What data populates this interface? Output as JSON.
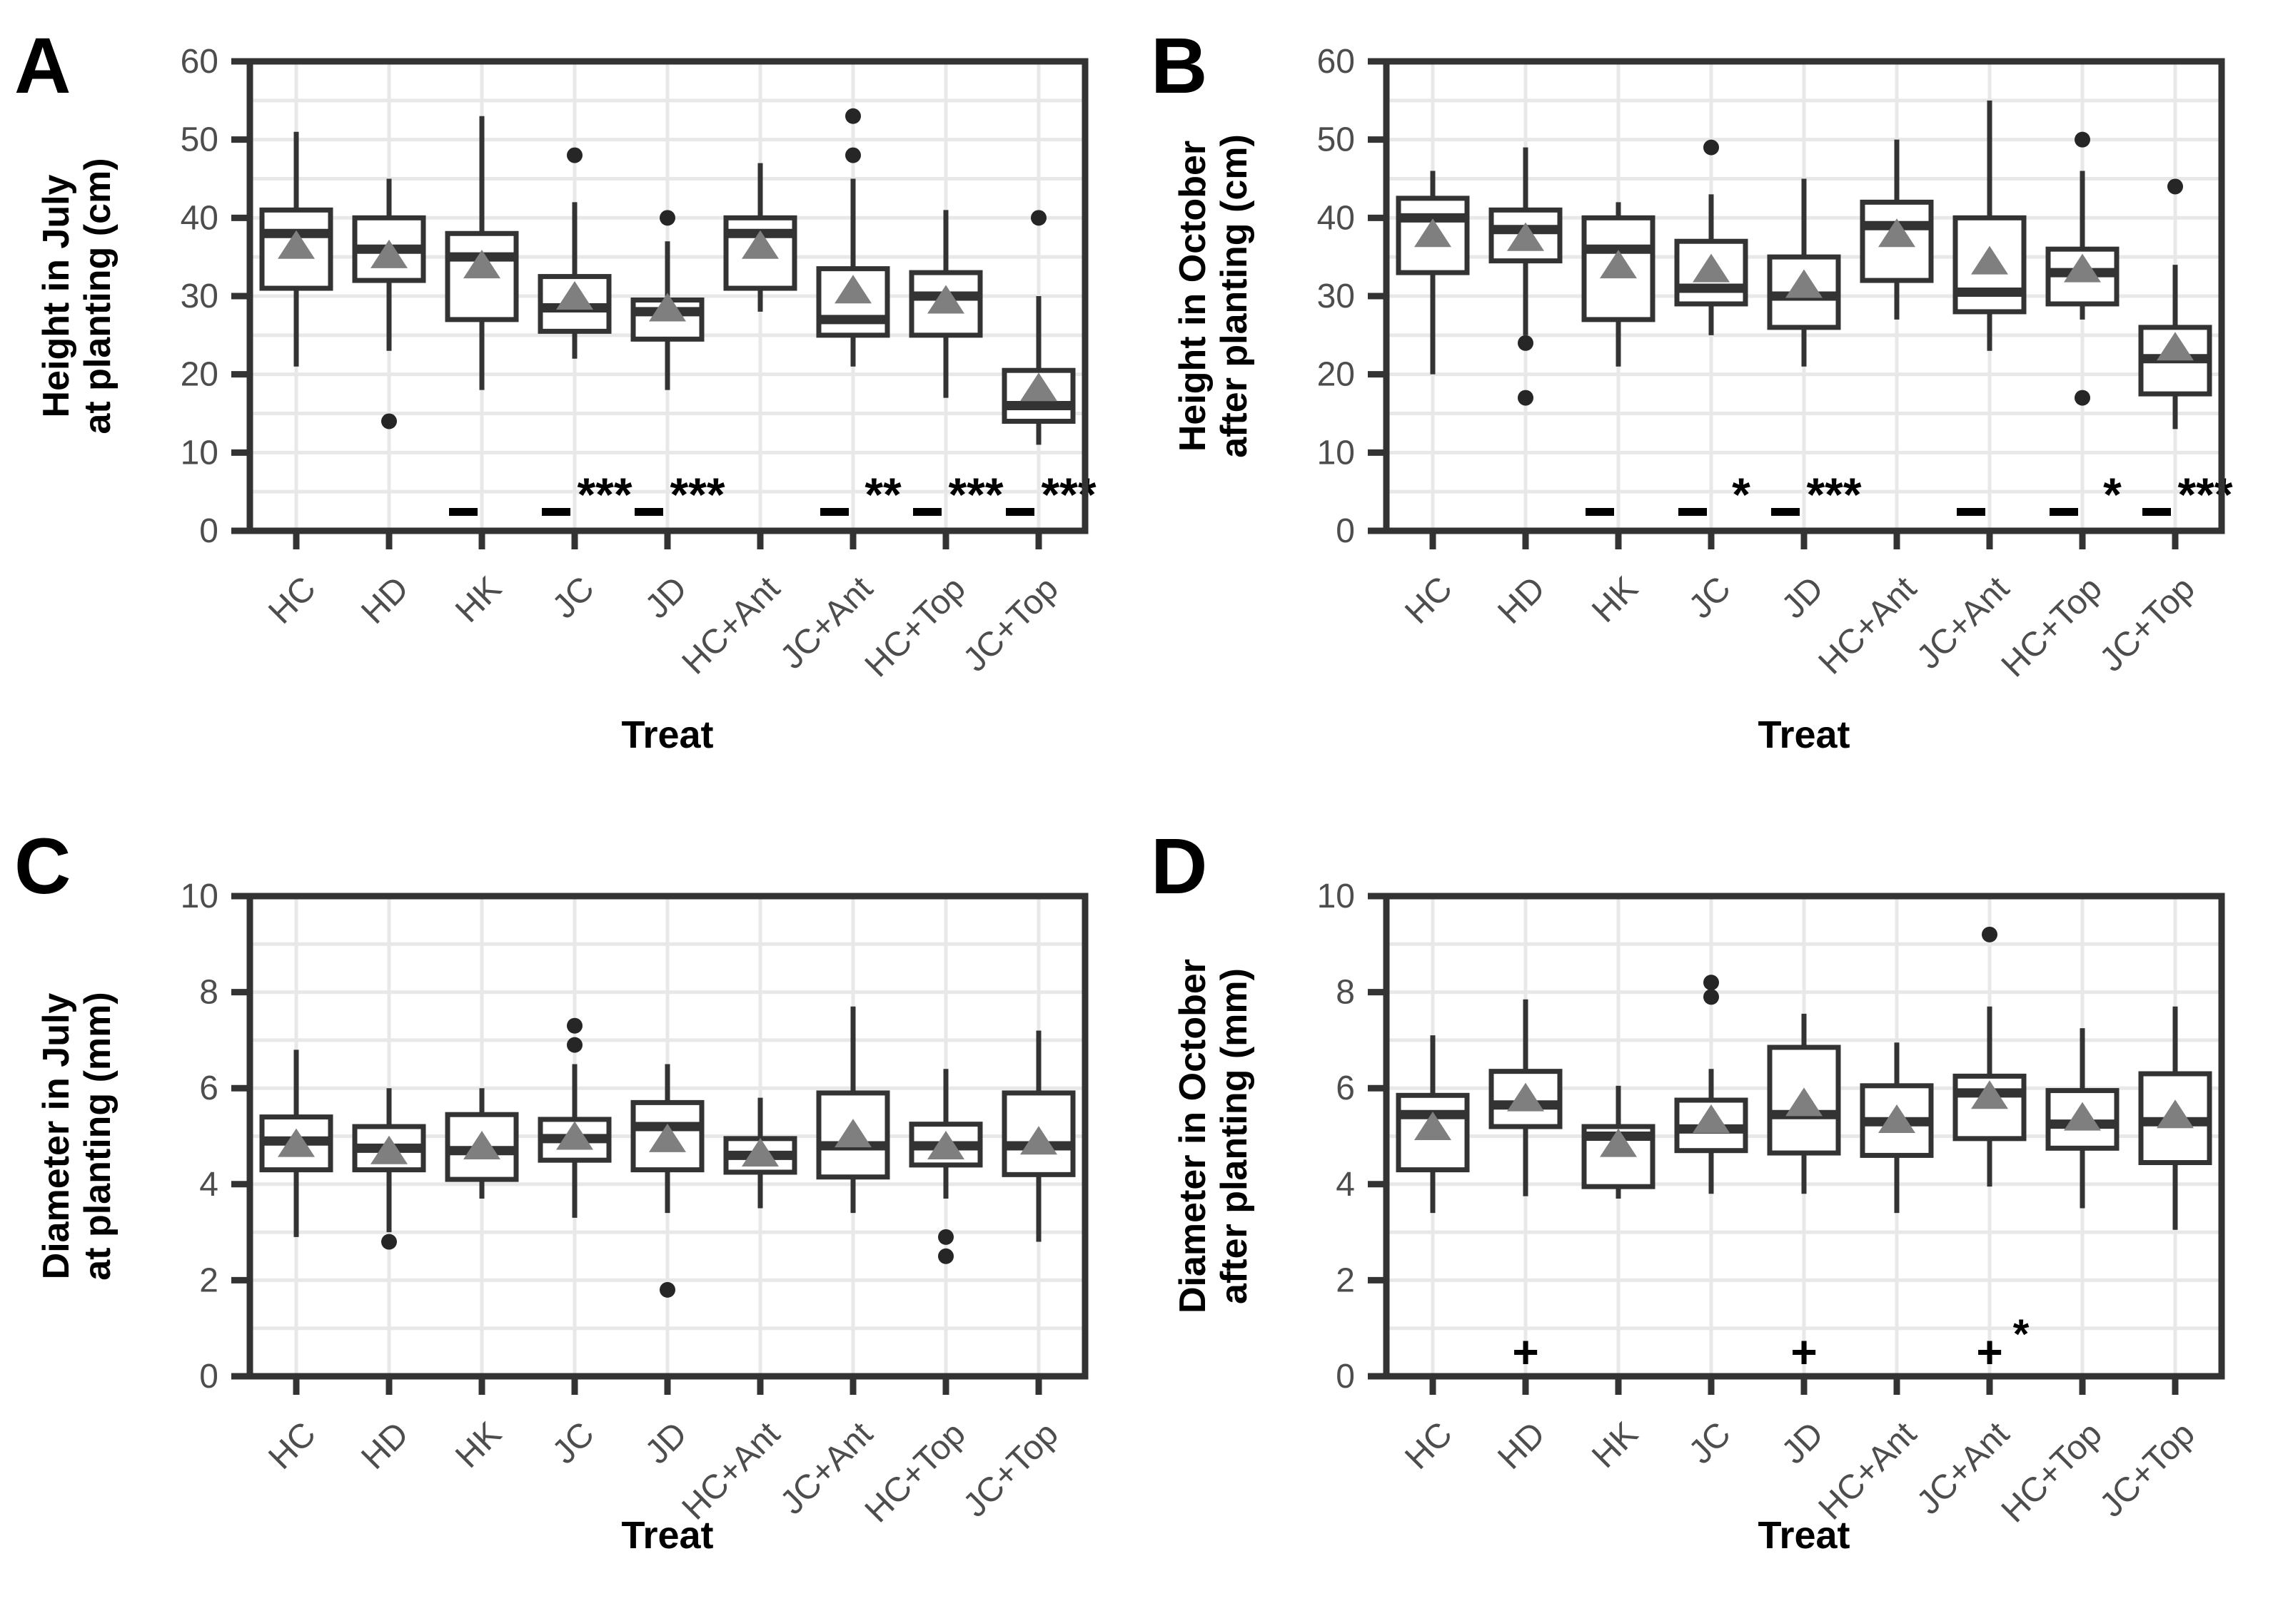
{
  "figure": {
    "xlabel": "Treat",
    "categories": [
      "HC",
      "HD",
      "HK",
      "JC",
      "JD",
      "HC+Ant",
      "JC+Ant",
      "HC+Top",
      "JC+Top"
    ],
    "colors": {
      "box_border": "#333333",
      "box_fill": "#ffffff",
      "gridline": "#e8e8e8",
      "tick_label": "#4d4d4d",
      "axis_text": "#000000",
      "mean_marker": "#7f7f7f",
      "outlier": "#262626",
      "significance": "#000000"
    }
  },
  "chart_data": [
    {
      "type": "boxplot",
      "panel_label": "A",
      "ylabel_lines": [
        "Height in July",
        "at planting (cm)"
      ],
      "xlabel": "Treat",
      "ylim": [
        0,
        60
      ],
      "yticks": [
        0,
        10,
        20,
        30,
        40,
        50,
        60
      ],
      "grid_interval": 5,
      "grid": "on",
      "legend": "none",
      "categories": [
        "HC",
        "HD",
        "HK",
        "JC",
        "JD",
        "HC+Ant",
        "JC+Ant",
        "HC+Top",
        "JC+Top"
      ],
      "boxes": [
        {
          "category": "HC",
          "whisker_low": 21,
          "q1": 31,
          "median": 38,
          "q3": 41,
          "whisker_high": 51,
          "mean": 36.5,
          "outliers": []
        },
        {
          "category": "HD",
          "whisker_low": 23,
          "q1": 32,
          "median": 36,
          "q3": 40,
          "whisker_high": 45,
          "mean": 35.3,
          "outliers": [
            14
          ]
        },
        {
          "category": "HK",
          "whisker_low": 18,
          "q1": 27,
          "median": 35,
          "q3": 38,
          "whisker_high": 53,
          "mean": 34,
          "outliers": []
        },
        {
          "category": "JC",
          "whisker_low": 22,
          "q1": 25.5,
          "median": 28.5,
          "q3": 32.5,
          "whisker_high": 42,
          "mean": 30,
          "outliers": [
            48
          ]
        },
        {
          "category": "JD",
          "whisker_low": 18,
          "q1": 24.5,
          "median": 28,
          "q3": 29.5,
          "whisker_high": 37,
          "mean": 28.5,
          "outliers": [
            40
          ]
        },
        {
          "category": "HC+Ant",
          "whisker_low": 28,
          "q1": 31,
          "median": 38,
          "q3": 40,
          "whisker_high": 47,
          "mean": 36.5,
          "outliers": []
        },
        {
          "category": "JC+Ant",
          "whisker_low": 21,
          "q1": 25,
          "median": 27,
          "q3": 33.5,
          "whisker_high": 45,
          "mean": 30.8,
          "outliers": [
            48,
            53
          ]
        },
        {
          "category": "HC+Top",
          "whisker_low": 17,
          "q1": 25,
          "median": 30,
          "q3": 33,
          "whisker_high": 41,
          "mean": 29.5,
          "outliers": []
        },
        {
          "category": "JC+Top",
          "whisker_low": 11,
          "q1": 14,
          "median": 16,
          "q3": 20.5,
          "whisker_high": 30,
          "mean": 18.3,
          "outliers": [
            40
          ]
        }
      ],
      "annotations": [
        {
          "category": "HK",
          "symbol": "-",
          "stars": ""
        },
        {
          "category": "JC",
          "symbol": "-",
          "stars": "***"
        },
        {
          "category": "JD",
          "symbol": "-",
          "stars": "***"
        },
        {
          "category": "JC+Ant",
          "symbol": "-",
          "stars": "**"
        },
        {
          "category": "HC+Top",
          "symbol": "-",
          "stars": "***"
        },
        {
          "category": "JC+Top",
          "symbol": "-",
          "stars": "***"
        }
      ]
    },
    {
      "type": "boxplot",
      "panel_label": "B",
      "ylabel_lines": [
        "Height in October",
        "after planting (cm)"
      ],
      "xlabel": "Treat",
      "ylim": [
        0,
        60
      ],
      "yticks": [
        0,
        10,
        20,
        30,
        40,
        50,
        60
      ],
      "grid_interval": 5,
      "grid": "on",
      "legend": "none",
      "categories": [
        "HC",
        "HD",
        "HK",
        "JC",
        "JD",
        "HC+Ant",
        "JC+Ant",
        "HC+Top",
        "JC+Top"
      ],
      "boxes": [
        {
          "category": "HC",
          "whisker_low": 20,
          "q1": 33,
          "median": 40,
          "q3": 42.5,
          "whisker_high": 46,
          "mean": 38,
          "outliers": []
        },
        {
          "category": "HD",
          "whisker_low": 25,
          "q1": 34.5,
          "median": 38.5,
          "q3": 41,
          "whisker_high": 49,
          "mean": 37.5,
          "outliers": [
            24,
            17
          ]
        },
        {
          "category": "HK",
          "whisker_low": 21,
          "q1": 27,
          "median": 36,
          "q3": 40,
          "whisker_high": 42,
          "mean": 34,
          "outliers": []
        },
        {
          "category": "JC",
          "whisker_low": 25,
          "q1": 29,
          "median": 31,
          "q3": 37,
          "whisker_high": 43,
          "mean": 33.5,
          "outliers": [
            49
          ]
        },
        {
          "category": "JD",
          "whisker_low": 21,
          "q1": 26,
          "median": 30,
          "q3": 35,
          "whisker_high": 45,
          "mean": 31.5,
          "outliers": []
        },
        {
          "category": "HC+Ant",
          "whisker_low": 27,
          "q1": 32,
          "median": 39,
          "q3": 42,
          "whisker_high": 50,
          "mean": 38,
          "outliers": []
        },
        {
          "category": "JC+Ant",
          "whisker_low": 23,
          "q1": 28,
          "median": 30.5,
          "q3": 40,
          "whisker_high": 55,
          "mean": 34.5,
          "outliers": []
        },
        {
          "category": "HC+Top",
          "whisker_low": 27,
          "q1": 29,
          "median": 33,
          "q3": 36,
          "whisker_high": 46,
          "mean": 33.5,
          "outliers": [
            50,
            17
          ]
        },
        {
          "category": "JC+Top",
          "whisker_low": 13,
          "q1": 17.5,
          "median": 22,
          "q3": 26,
          "whisker_high": 34,
          "mean": 23.5,
          "outliers": [
            44
          ]
        }
      ],
      "annotations": [
        {
          "category": "HK",
          "symbol": "-",
          "stars": ""
        },
        {
          "category": "JC",
          "symbol": "-",
          "stars": "*"
        },
        {
          "category": "JD",
          "symbol": "-",
          "stars": "***"
        },
        {
          "category": "JC+Ant",
          "symbol": "-",
          "stars": ""
        },
        {
          "category": "HC+Top",
          "symbol": "-",
          "stars": "*"
        },
        {
          "category": "JC+Top",
          "symbol": "-",
          "stars": "***"
        }
      ]
    },
    {
      "type": "boxplot",
      "panel_label": "C",
      "ylabel_lines": [
        "Diameter in July",
        "at planting (mm)"
      ],
      "xlabel": "Treat",
      "ylim": [
        0,
        10
      ],
      "yticks": [
        0,
        2,
        4,
        6,
        8,
        10
      ],
      "grid_interval": 1,
      "grid": "on",
      "legend": "none",
      "categories": [
        "HC",
        "HD",
        "HK",
        "JC",
        "JD",
        "HC+Ant",
        "JC+Ant",
        "HC+Top",
        "JC+Top"
      ],
      "boxes": [
        {
          "category": "HC",
          "whisker_low": 2.9,
          "q1": 4.3,
          "median": 4.9,
          "q3": 5.4,
          "whisker_high": 6.8,
          "mean": 4.85,
          "outliers": []
        },
        {
          "category": "HD",
          "whisker_low": 3.0,
          "q1": 4.3,
          "median": 4.75,
          "q3": 5.2,
          "whisker_high": 6.0,
          "mean": 4.7,
          "outliers": [
            2.8
          ]
        },
        {
          "category": "HK",
          "whisker_low": 3.7,
          "q1": 4.1,
          "median": 4.7,
          "q3": 5.45,
          "whisker_high": 6.0,
          "mean": 4.8,
          "outliers": []
        },
        {
          "category": "JC",
          "whisker_low": 3.3,
          "q1": 4.5,
          "median": 4.95,
          "q3": 5.35,
          "whisker_high": 6.5,
          "mean": 5.0,
          "outliers": [
            6.9,
            7.3
          ]
        },
        {
          "category": "JD",
          "whisker_low": 3.4,
          "q1": 4.3,
          "median": 5.2,
          "q3": 5.7,
          "whisker_high": 6.5,
          "mean": 4.95,
          "outliers": [
            1.8
          ]
        },
        {
          "category": "HC+Ant",
          "whisker_low": 3.5,
          "q1": 4.25,
          "median": 4.6,
          "q3": 4.95,
          "whisker_high": 5.8,
          "mean": 4.65,
          "outliers": []
        },
        {
          "category": "JC+Ant",
          "whisker_low": 3.4,
          "q1": 4.15,
          "median": 4.8,
          "q3": 5.9,
          "whisker_high": 7.7,
          "mean": 5.05,
          "outliers": []
        },
        {
          "category": "HC+Top",
          "whisker_low": 3.7,
          "q1": 4.4,
          "median": 4.8,
          "q3": 5.25,
          "whisker_high": 6.4,
          "mean": 4.8,
          "outliers": [
            2.9,
            2.5
          ]
        },
        {
          "category": "JC+Top",
          "whisker_low": 2.8,
          "q1": 4.2,
          "median": 4.8,
          "q3": 5.9,
          "whisker_high": 7.2,
          "mean": 4.9,
          "outliers": []
        }
      ],
      "annotations": []
    },
    {
      "type": "boxplot",
      "panel_label": "D",
      "ylabel_lines": [
        "Diameter in October",
        "after planting (mm)"
      ],
      "xlabel": "Treat",
      "ylim": [
        0,
        10
      ],
      "yticks": [
        0,
        2,
        4,
        6,
        8,
        10
      ],
      "grid_interval": 1,
      "grid": "on",
      "legend": "none",
      "categories": [
        "HC",
        "HD",
        "HK",
        "JC",
        "JD",
        "HC+Ant",
        "JC+Ant",
        "HC+Top",
        "JC+Top"
      ],
      "boxes": [
        {
          "category": "HC",
          "whisker_low": 3.4,
          "q1": 4.3,
          "median": 5.45,
          "q3": 5.85,
          "whisker_high": 7.1,
          "mean": 5.2,
          "outliers": []
        },
        {
          "category": "HD",
          "whisker_low": 3.75,
          "q1": 5.2,
          "median": 5.65,
          "q3": 6.35,
          "whisker_high": 7.85,
          "mean": 5.8,
          "outliers": []
        },
        {
          "category": "HK",
          "whisker_low": 3.7,
          "q1": 3.95,
          "median": 5.0,
          "q3": 5.2,
          "whisker_high": 6.05,
          "mean": 4.85,
          "outliers": []
        },
        {
          "category": "JC",
          "whisker_low": 3.8,
          "q1": 4.7,
          "median": 5.15,
          "q3": 5.75,
          "whisker_high": 6.4,
          "mean": 5.35,
          "outliers": [
            7.9,
            8.2
          ]
        },
        {
          "category": "JD",
          "whisker_low": 3.8,
          "q1": 4.65,
          "median": 5.45,
          "q3": 6.85,
          "whisker_high": 7.55,
          "mean": 5.7,
          "outliers": []
        },
        {
          "category": "HC+Ant",
          "whisker_low": 3.4,
          "q1": 4.6,
          "median": 5.3,
          "q3": 6.05,
          "whisker_high": 6.95,
          "mean": 5.35,
          "outliers": []
        },
        {
          "category": "JC+Ant",
          "whisker_low": 3.95,
          "q1": 4.95,
          "median": 5.9,
          "q3": 6.25,
          "whisker_high": 7.7,
          "mean": 5.85,
          "outliers": [
            9.2
          ]
        },
        {
          "category": "HC+Top",
          "whisker_low": 3.5,
          "q1": 4.75,
          "median": 5.25,
          "q3": 5.95,
          "whisker_high": 7.25,
          "mean": 5.4,
          "outliers": []
        },
        {
          "category": "JC+Top",
          "whisker_low": 3.05,
          "q1": 4.45,
          "median": 5.3,
          "q3": 6.3,
          "whisker_high": 7.7,
          "mean": 5.45,
          "outliers": []
        }
      ],
      "annotations": [
        {
          "category": "HD",
          "symbol": "+",
          "stars": ""
        },
        {
          "category": "JD",
          "symbol": "+",
          "stars": ""
        },
        {
          "category": "JC+Ant",
          "symbol": "+",
          "stars": "*"
        }
      ]
    }
  ]
}
